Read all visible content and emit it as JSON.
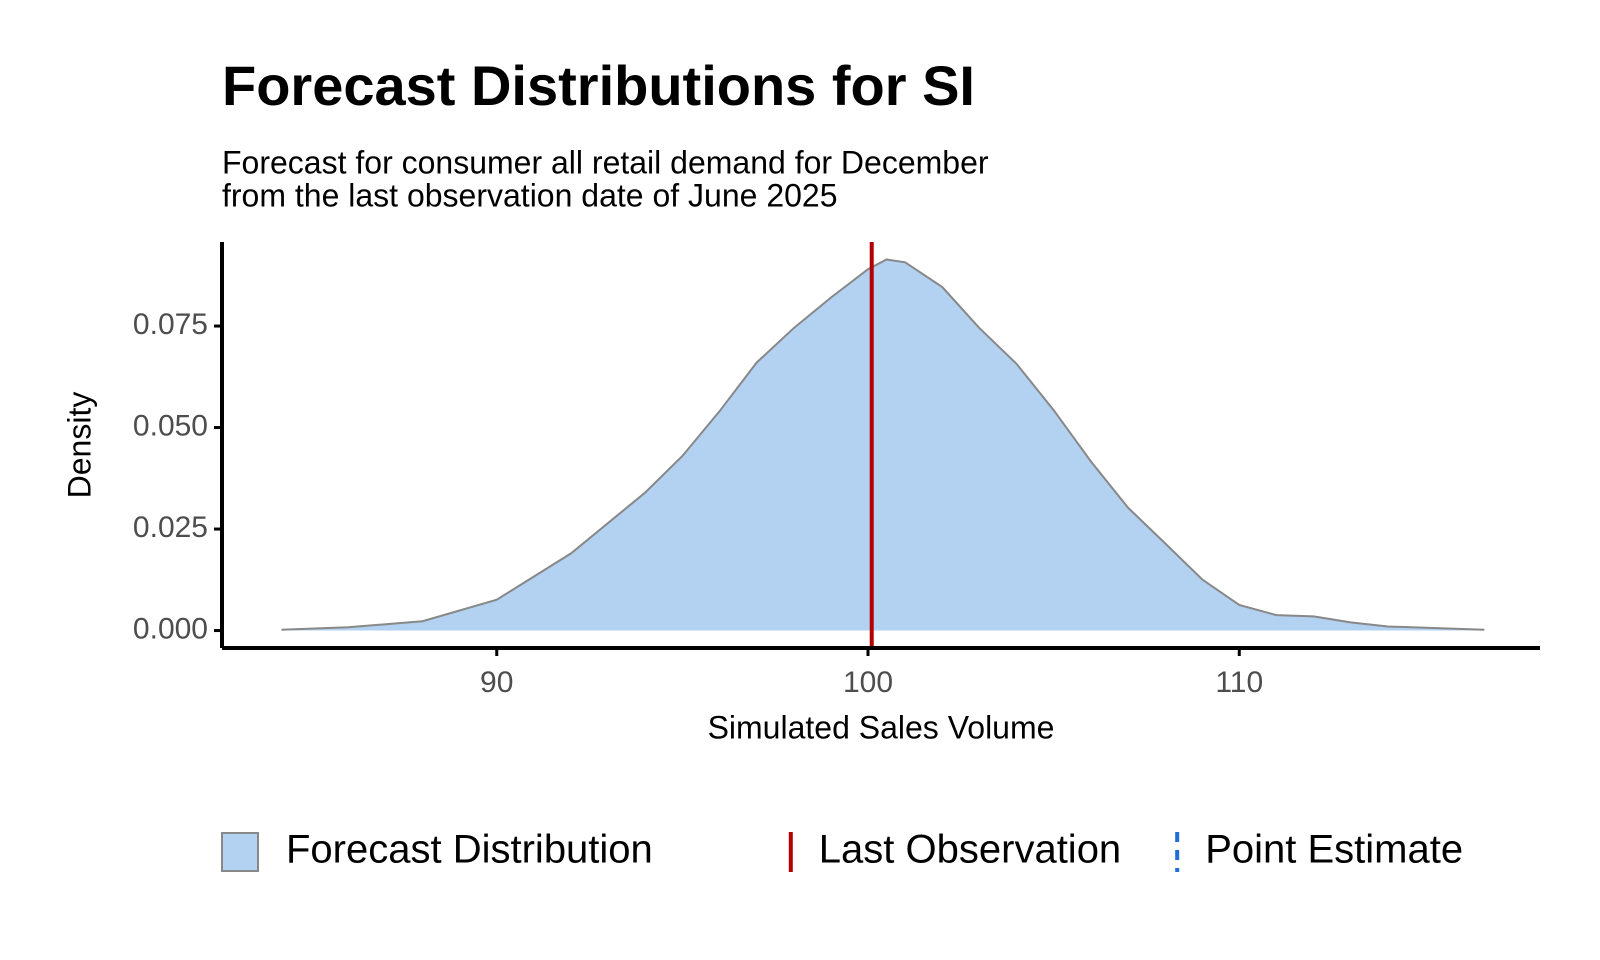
{
  "chart_data": {
    "type": "density",
    "title": "Forecast Distributions for SI",
    "subtitle": [
      "Forecast for consumer all retail demand for December",
      "from the last observation date of June 2025"
    ],
    "x_label": "Simulated Sales Volume",
    "y_label": "Density",
    "x": [
      84.2,
      86,
      88,
      90,
      92,
      94,
      95,
      96,
      97,
      98,
      99,
      100,
      100.5,
      101,
      102,
      103,
      104,
      105,
      106,
      107,
      108,
      109,
      110,
      111,
      112,
      113,
      114,
      116.6
    ],
    "series": [
      {
        "name": "Forecast Distribution",
        "color": "#b3d1f0",
        "values": [
          0.0002,
          0.0008,
          0.0023,
          0.0076,
          0.019,
          0.034,
          0.043,
          0.054,
          0.066,
          0.0745,
          0.082,
          0.089,
          0.0914,
          0.0907,
          0.0846,
          0.0745,
          0.0657,
          0.0543,
          0.0417,
          0.0303,
          0.0215,
          0.0126,
          0.0063,
          0.0038,
          0.0035,
          0.002,
          0.001,
          0.0002
        ]
      }
    ],
    "vlines": [
      {
        "name": "Last Observation",
        "color": "#b30000",
        "value": 100.1,
        "dashed": false
      },
      {
        "name": "Point Estimate",
        "color": "#1f6fd6",
        "value": 100.1,
        "dashed": true
      }
    ],
    "xlim": [
      82.6,
      118.1
    ],
    "ylim": [
      -0.0043,
      0.0957
    ],
    "xticks": [
      90,
      100,
      110
    ],
    "yticks": [
      {
        "value": 0,
        "label": "0.000"
      },
      0.025,
      {
        "value": 0.05,
        "label": "0.050"
      },
      0.075
    ],
    "grid": false,
    "legend": "bottom"
  }
}
